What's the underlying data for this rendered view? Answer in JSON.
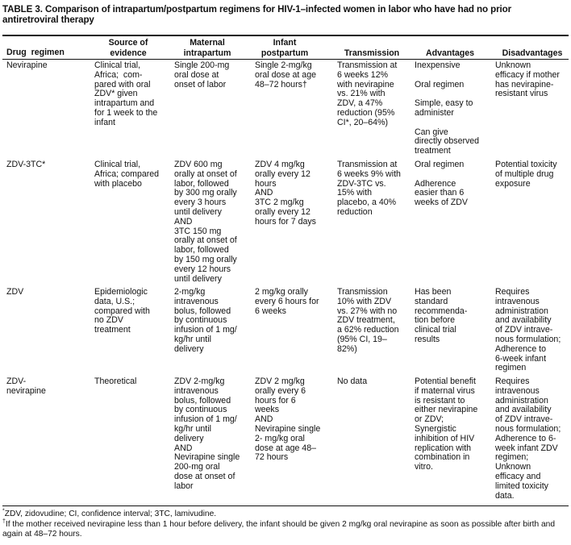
{
  "title": "TABLE 3. Comparison of intrapartum/postpartum regimens for HIV-1–infected women in labor who have had no prior antiretroviral therapy",
  "columns": [
    "Drug  regimen",
    "Source of\nevidence",
    "Maternal\nintrapartum",
    "Infant\npostpartum",
    "Transmission",
    "Advantages",
    "Disadvantages"
  ],
  "rows": [
    {
      "drug": "Nevirapine",
      "source": "Clinical trial,\nAfrica;  com-\npared with oral\nZDV* given\nintrapartum and\nfor 1 week to the\ninfant",
      "maternal": "Single 200-mg\noral dose at\nonset of labor",
      "infant": "Single 2-mg/kg\noral dose at age\n48–72 hours†",
      "transmission": "Transmission at\n6 weeks 12%\nwith nevirapine\nvs. 21% with\nZDV, a 47%\nreduction (95%\nCI*, 20–64%)",
      "advantages": "Inexpensive\n\nOral regimen\n\nSimple, easy to\nadminister\n\nCan give\ndirectly observed\ntreatment",
      "disadvantages": "Unknown\nefficacy if mother\nhas nevirapine-\nresistant virus"
    },
    {
      "drug": "ZDV-3TC*",
      "source": "Clinical trial,\nAfrica; compared\nwith placebo",
      "maternal": "ZDV 600 mg\norally at onset of\nlabor, followed\nby 300 mg orally\nevery 3 hours\nuntil delivery\nAND\n3TC 150 mg\norally at onset of\nlabor, followed\nby 150 mg orally\nevery 12 hours\nuntil delivery",
      "infant": "ZDV 4 mg/kg\norally every 12\nhours\nAND\n3TC 2 mg/kg\norally every 12\nhours for 7 days",
      "transmission": "Transmission at\n6 weeks 9% with\nZDV-3TC vs.\n15% with\nplacebo, a 40%\nreduction",
      "advantages": "Oral regimen\n\nAdherence\neasier than 6\nweeks of ZDV",
      "disadvantages": "Potential toxicity\nof multiple drug\nexposure"
    },
    {
      "drug": "ZDV",
      "source": "Epidemiologic\ndata, U.S.;\ncompared with\nno ZDV\ntreatment",
      "maternal": "2-mg/kg\nintravenous\nbolus, followed\nby continuous\ninfusion of 1 mg/\nkg/hr until\ndelivery",
      "infant": "2 mg/kg orally\nevery 6 hours for\n6 weeks",
      "transmission": "Transmission\n10% with ZDV\nvs. 27% with no\nZDV treatment,\na 62% reduction\n(95% CI, 19–\n82%)",
      "advantages": "Has been\nstandard\nrecommenda-\ntion before\nclinical trial\nresults",
      "disadvantages": "Requires\nintravenous\nadministration\nand availability\nof ZDV intrave-\nnous formulation;\nAdherence to\n6-week infant\nregimen"
    },
    {
      "drug": "ZDV-\nnevirapine",
      "source": "Theoretical",
      "maternal": "ZDV 2-mg/kg\nintravenous\nbolus, followed\nby continuous\ninfusion of 1 mg/\nkg/hr until\ndelivery\nAND\nNevirapine single\n200-mg oral\ndose at onset of\nlabor",
      "infant": "ZDV 2 mg/kg\norally every 6\nhours for 6\nweeks\nAND\nNevirapine single\n2- mg/kg oral\ndose at age 48–\n72 hours",
      "transmission": "No data",
      "advantages": "Potential benefit\nif maternal virus\nis resistant to\neither nevirapine\nor ZDV;\nSynergistic\ninhibition of HIV\nreplication with\ncombination in\nvitro.",
      "disadvantages": "Requires\nintravenous\nadministration\nand availability\nof ZDV intrave-\nnous formulation;\nAdherence to 6-\nweek infant ZDV\nregimen;\nUnknown\nefficacy and\nlimited toxicity\ndata."
    }
  ],
  "footnotes": [
    {
      "mark": "*",
      "text": "ZDV, zidovudine; CI, confidence interval; 3TC, lamivudine."
    },
    {
      "mark": "†",
      "text": "If the mother received nevirapine less than 1 hour before delivery, the infant should be given 2 mg/kg oral nevirapine as soon as possible after birth and\nagain at 48–72 hours."
    }
  ]
}
